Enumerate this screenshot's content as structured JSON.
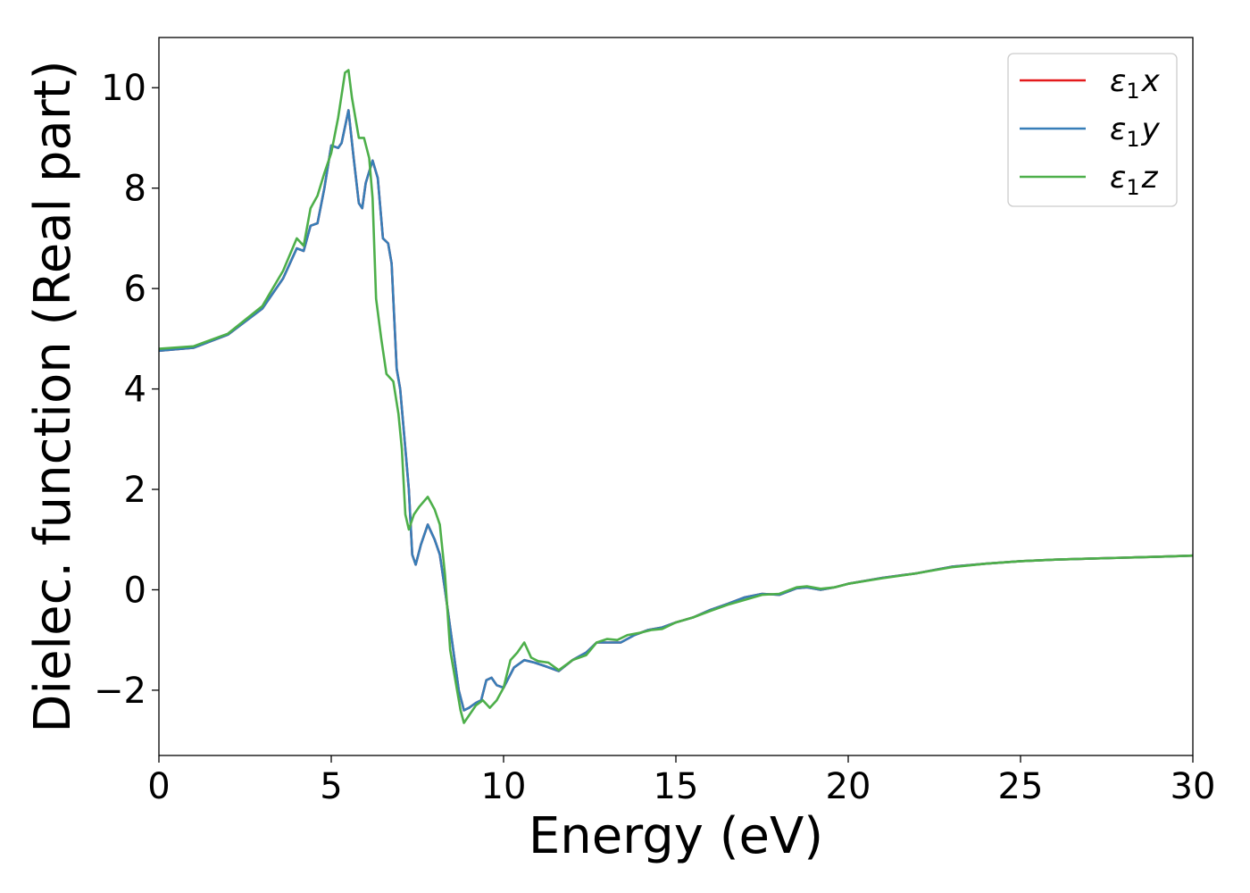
{
  "chart_data": {
    "type": "line",
    "xlabel": "Energy (eV)",
    "ylabel": "Dielec. function (Real part)",
    "xlim": [
      0,
      30
    ],
    "ylim": [
      -3.3,
      11.0
    ],
    "xticks": [
      0,
      5,
      10,
      15,
      20,
      25,
      30
    ],
    "xtick_labels": [
      "0",
      "5",
      "10",
      "15",
      "20",
      "25",
      "30"
    ],
    "yticks": [
      -2,
      0,
      2,
      4,
      6,
      8,
      10
    ],
    "ytick_labels": [
      "−2",
      "0",
      "2",
      "4",
      "6",
      "8",
      "10"
    ],
    "grid": false,
    "legend_position": "top-right",
    "series": [
      {
        "name": "ε₁x",
        "legend_base": "ε",
        "legend_sub": "1",
        "legend_var": "x",
        "color": "#e41a1c",
        "points": [
          [
            0,
            4.76
          ],
          [
            1,
            4.82
          ],
          [
            2,
            5.08
          ],
          [
            3,
            5.6
          ],
          [
            3.6,
            6.2
          ],
          [
            4.0,
            6.8
          ],
          [
            4.2,
            6.75
          ],
          [
            4.4,
            7.25
          ],
          [
            4.6,
            7.3
          ],
          [
            4.8,
            8.0
          ],
          [
            5.0,
            8.85
          ],
          [
            5.2,
            8.8
          ],
          [
            5.3,
            8.9
          ],
          [
            5.5,
            9.55
          ],
          [
            5.65,
            8.6
          ],
          [
            5.8,
            7.7
          ],
          [
            5.9,
            7.6
          ],
          [
            6.0,
            8.1
          ],
          [
            6.2,
            8.55
          ],
          [
            6.35,
            8.2
          ],
          [
            6.5,
            7.0
          ],
          [
            6.65,
            6.9
          ],
          [
            6.75,
            6.5
          ],
          [
            6.9,
            4.4
          ],
          [
            7.0,
            4.0
          ],
          [
            7.1,
            3.2
          ],
          [
            7.25,
            2.0
          ],
          [
            7.35,
            0.7
          ],
          [
            7.45,
            0.5
          ],
          [
            7.6,
            0.9
          ],
          [
            7.8,
            1.3
          ],
          [
            8.0,
            1.0
          ],
          [
            8.15,
            0.7
          ],
          [
            8.3,
            0.0
          ],
          [
            8.5,
            -1.0
          ],
          [
            8.7,
            -2.0
          ],
          [
            8.85,
            -2.4
          ],
          [
            9.0,
            -2.35
          ],
          [
            9.2,
            -2.25
          ],
          [
            9.35,
            -2.2
          ],
          [
            9.5,
            -1.8
          ],
          [
            9.65,
            -1.75
          ],
          [
            9.8,
            -1.9
          ],
          [
            10.0,
            -1.95
          ],
          [
            10.3,
            -1.55
          ],
          [
            10.6,
            -1.4
          ],
          [
            10.9,
            -1.45
          ],
          [
            11.2,
            -1.52
          ],
          [
            11.6,
            -1.62
          ],
          [
            12.0,
            -1.4
          ],
          [
            12.4,
            -1.25
          ],
          [
            12.7,
            -1.05
          ],
          [
            13.0,
            -1.05
          ],
          [
            13.4,
            -1.05
          ],
          [
            13.8,
            -0.9
          ],
          [
            14.2,
            -0.8
          ],
          [
            14.6,
            -0.75
          ],
          [
            15.0,
            -0.65
          ],
          [
            15.5,
            -0.55
          ],
          [
            16.0,
            -0.4
          ],
          [
            16.5,
            -0.28
          ],
          [
            17.0,
            -0.15
          ],
          [
            17.5,
            -0.08
          ],
          [
            18.0,
            -0.1
          ],
          [
            18.5,
            0.03
          ],
          [
            18.8,
            0.05
          ],
          [
            19.2,
            0.0
          ],
          [
            19.6,
            0.05
          ],
          [
            20,
            0.12
          ],
          [
            21,
            0.24
          ],
          [
            22,
            0.33
          ],
          [
            23,
            0.46
          ],
          [
            24,
            0.52
          ],
          [
            25,
            0.57
          ],
          [
            26,
            0.6
          ],
          [
            27,
            0.62
          ],
          [
            28,
            0.64
          ],
          [
            29,
            0.66
          ],
          [
            30,
            0.68
          ]
        ]
      },
      {
        "name": "ε₁y",
        "legend_base": "ε",
        "legend_sub": "1",
        "legend_var": "y",
        "color": "#377eb8",
        "points": [
          [
            0,
            4.76
          ],
          [
            1,
            4.82
          ],
          [
            2,
            5.08
          ],
          [
            3,
            5.6
          ],
          [
            3.6,
            6.2
          ],
          [
            4.0,
            6.8
          ],
          [
            4.2,
            6.75
          ],
          [
            4.4,
            7.25
          ],
          [
            4.6,
            7.3
          ],
          [
            4.8,
            8.0
          ],
          [
            5.0,
            8.85
          ],
          [
            5.2,
            8.8
          ],
          [
            5.3,
            8.9
          ],
          [
            5.5,
            9.55
          ],
          [
            5.65,
            8.6
          ],
          [
            5.8,
            7.7
          ],
          [
            5.9,
            7.6
          ],
          [
            6.0,
            8.1
          ],
          [
            6.2,
            8.55
          ],
          [
            6.35,
            8.2
          ],
          [
            6.5,
            7.0
          ],
          [
            6.65,
            6.9
          ],
          [
            6.75,
            6.5
          ],
          [
            6.9,
            4.4
          ],
          [
            7.0,
            4.0
          ],
          [
            7.1,
            3.2
          ],
          [
            7.25,
            2.0
          ],
          [
            7.35,
            0.7
          ],
          [
            7.45,
            0.5
          ],
          [
            7.6,
            0.9
          ],
          [
            7.8,
            1.3
          ],
          [
            8.0,
            1.0
          ],
          [
            8.15,
            0.7
          ],
          [
            8.3,
            0.0
          ],
          [
            8.5,
            -1.0
          ],
          [
            8.7,
            -2.0
          ],
          [
            8.85,
            -2.4
          ],
          [
            9.0,
            -2.35
          ],
          [
            9.2,
            -2.25
          ],
          [
            9.35,
            -2.2
          ],
          [
            9.5,
            -1.8
          ],
          [
            9.65,
            -1.75
          ],
          [
            9.8,
            -1.9
          ],
          [
            10.0,
            -1.95
          ],
          [
            10.3,
            -1.55
          ],
          [
            10.6,
            -1.4
          ],
          [
            10.9,
            -1.45
          ],
          [
            11.2,
            -1.52
          ],
          [
            11.6,
            -1.62
          ],
          [
            12.0,
            -1.4
          ],
          [
            12.4,
            -1.25
          ],
          [
            12.7,
            -1.05
          ],
          [
            13.0,
            -1.05
          ],
          [
            13.4,
            -1.05
          ],
          [
            13.8,
            -0.9
          ],
          [
            14.2,
            -0.8
          ],
          [
            14.6,
            -0.75
          ],
          [
            15.0,
            -0.65
          ],
          [
            15.5,
            -0.55
          ],
          [
            16.0,
            -0.4
          ],
          [
            16.5,
            -0.28
          ],
          [
            17.0,
            -0.15
          ],
          [
            17.5,
            -0.08
          ],
          [
            18.0,
            -0.1
          ],
          [
            18.5,
            0.03
          ],
          [
            18.8,
            0.05
          ],
          [
            19.2,
            0.0
          ],
          [
            19.6,
            0.05
          ],
          [
            20,
            0.12
          ],
          [
            21,
            0.24
          ],
          [
            22,
            0.33
          ],
          [
            23,
            0.46
          ],
          [
            24,
            0.52
          ],
          [
            25,
            0.57
          ],
          [
            26,
            0.6
          ],
          [
            27,
            0.62
          ],
          [
            28,
            0.64
          ],
          [
            29,
            0.66
          ],
          [
            30,
            0.68
          ]
        ]
      },
      {
        "name": "ε₁z",
        "legend_base": "ε",
        "legend_sub": "1",
        "legend_var": "z",
        "color": "#4daf4a",
        "points": [
          [
            0,
            4.8
          ],
          [
            1,
            4.85
          ],
          [
            2,
            5.1
          ],
          [
            3,
            5.65
          ],
          [
            3.6,
            6.35
          ],
          [
            4.0,
            7.0
          ],
          [
            4.2,
            6.85
          ],
          [
            4.4,
            7.6
          ],
          [
            4.6,
            7.85
          ],
          [
            4.8,
            8.3
          ],
          [
            5.0,
            8.7
          ],
          [
            5.2,
            9.4
          ],
          [
            5.4,
            10.3
          ],
          [
            5.5,
            10.35
          ],
          [
            5.6,
            9.8
          ],
          [
            5.8,
            9.0
          ],
          [
            5.95,
            9.0
          ],
          [
            6.1,
            8.6
          ],
          [
            6.2,
            7.8
          ],
          [
            6.3,
            5.8
          ],
          [
            6.45,
            5.0
          ],
          [
            6.6,
            4.3
          ],
          [
            6.8,
            4.15
          ],
          [
            6.95,
            3.5
          ],
          [
            7.05,
            2.8
          ],
          [
            7.15,
            1.5
          ],
          [
            7.25,
            1.2
          ],
          [
            7.4,
            1.5
          ],
          [
            7.55,
            1.65
          ],
          [
            7.8,
            1.85
          ],
          [
            8.0,
            1.6
          ],
          [
            8.15,
            1.3
          ],
          [
            8.3,
            0.3
          ],
          [
            8.45,
            -1.2
          ],
          [
            8.6,
            -1.8
          ],
          [
            8.75,
            -2.4
          ],
          [
            8.85,
            -2.65
          ],
          [
            9.0,
            -2.5
          ],
          [
            9.2,
            -2.3
          ],
          [
            9.4,
            -2.2
          ],
          [
            9.6,
            -2.35
          ],
          [
            9.8,
            -2.2
          ],
          [
            10.0,
            -1.95
          ],
          [
            10.2,
            -1.4
          ],
          [
            10.4,
            -1.25
          ],
          [
            10.6,
            -1.05
          ],
          [
            10.8,
            -1.35
          ],
          [
            11.0,
            -1.42
          ],
          [
            11.3,
            -1.45
          ],
          [
            11.6,
            -1.6
          ],
          [
            12.0,
            -1.4
          ],
          [
            12.4,
            -1.3
          ],
          [
            12.7,
            -1.05
          ],
          [
            13.0,
            -0.98
          ],
          [
            13.3,
            -1.0
          ],
          [
            13.6,
            -0.9
          ],
          [
            14.0,
            -0.85
          ],
          [
            14.3,
            -0.8
          ],
          [
            14.6,
            -0.78
          ],
          [
            15.0,
            -0.65
          ],
          [
            15.5,
            -0.55
          ],
          [
            16.0,
            -0.42
          ],
          [
            16.5,
            -0.3
          ],
          [
            17.0,
            -0.2
          ],
          [
            17.5,
            -0.1
          ],
          [
            18.0,
            -0.08
          ],
          [
            18.5,
            0.05
          ],
          [
            18.8,
            0.07
          ],
          [
            19.2,
            0.02
          ],
          [
            19.6,
            0.05
          ],
          [
            20,
            0.12
          ],
          [
            21,
            0.23
          ],
          [
            22,
            0.33
          ],
          [
            23,
            0.45
          ],
          [
            24,
            0.52
          ],
          [
            25,
            0.57
          ],
          [
            26,
            0.6
          ],
          [
            27,
            0.62
          ],
          [
            28,
            0.64
          ],
          [
            29,
            0.66
          ],
          [
            30,
            0.68
          ]
        ]
      }
    ]
  }
}
